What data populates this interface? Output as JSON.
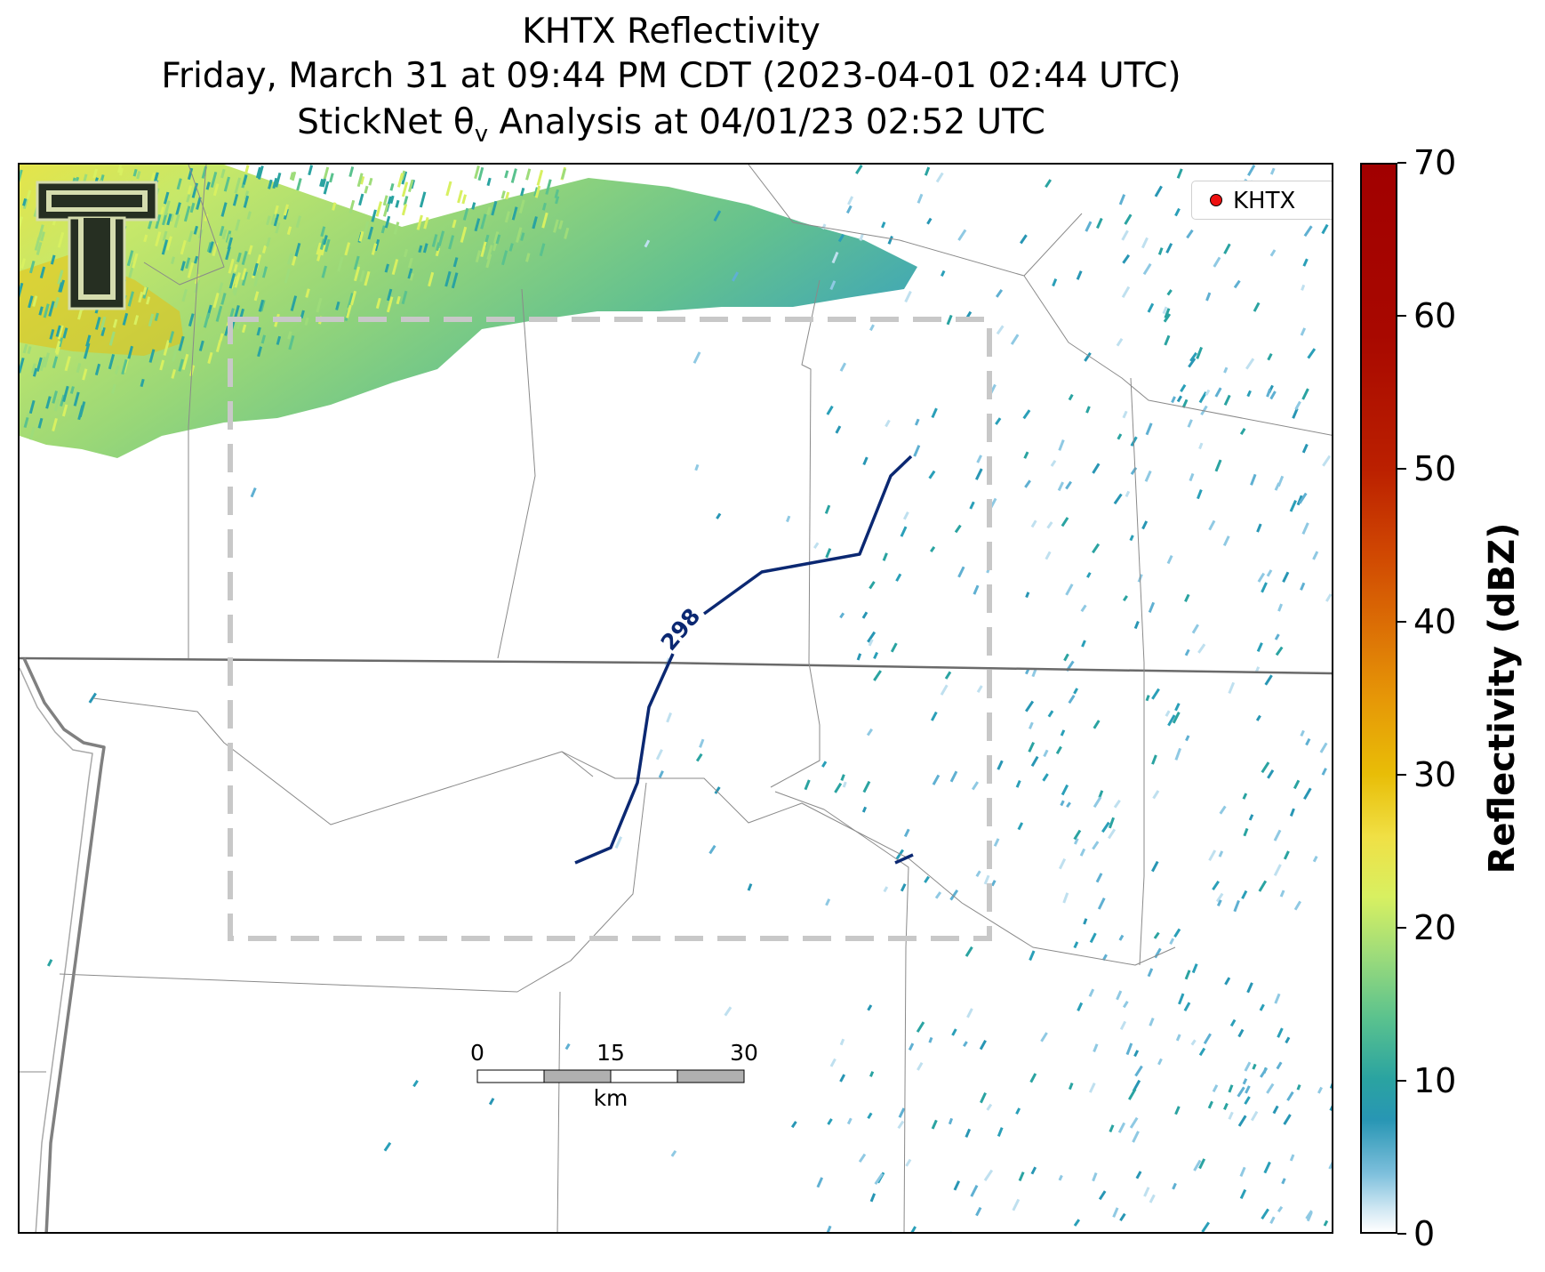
{
  "title": {
    "line1": "KHTX Reflectivity",
    "line2": "Friday, March 31 at 09:44 PM CDT (2023-04-01 02:44 UTC)",
    "line3": "StickNet θ",
    "line3_sub": "v",
    "line3_rest": " Analysis at 04/01/23 02:52 UTC"
  },
  "legend": {
    "label": "KHTX",
    "marker_color": "#ee1111"
  },
  "contour": {
    "label": "298",
    "color": "#0b2872"
  },
  "scale_bar": {
    "ticks": [
      "0",
      "15",
      "30"
    ],
    "unit": "km"
  },
  "colorbar": {
    "label": "Reflectivity (dBZ)",
    "ticks": [
      "0",
      "10",
      "20",
      "30",
      "40",
      "50",
      "60",
      "70"
    ],
    "range": [
      0,
      70
    ]
  },
  "colors": {
    "analysis_box": "#c8c8c8",
    "boundaries": "#808080",
    "state_line": "#6a6a6a",
    "echo_low": "#2896b4",
    "echo_mid": "#9edc7a",
    "echo_high": "#e8c010"
  },
  "logo": {
    "icon": "texas-tech-double-t-logo"
  }
}
